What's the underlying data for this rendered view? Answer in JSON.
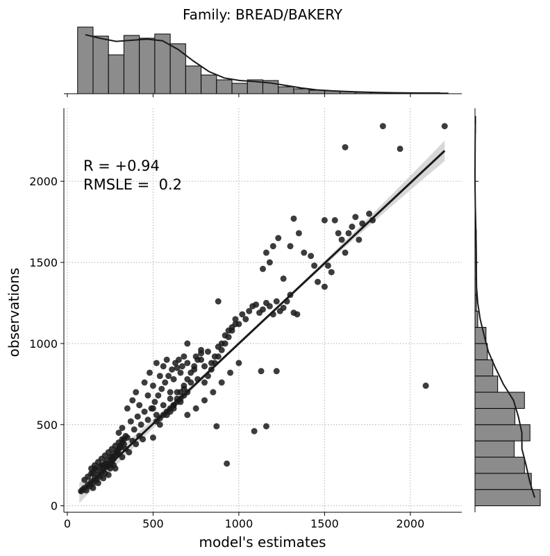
{
  "chart_data": {
    "type": "scatter",
    "title": "Family: BREAD/BAKERY",
    "xlabel": "model's estimates",
    "ylabel": "observations",
    "xlim": [
      -20,
      2300
    ],
    "ylim": [
      -40,
      2450
    ],
    "x_ticks": [
      0,
      500,
      1000,
      1500,
      2000
    ],
    "y_ticks": [
      0,
      500,
      1000,
      1500,
      2000
    ],
    "x_tick_labels": [
      "0",
      "500",
      "1000",
      "1500",
      "2000"
    ],
    "y_tick_labels": [
      "0",
      "500",
      "1000",
      "1500",
      "2000"
    ],
    "grid": true,
    "annotation_lines": [
      "R = +0.94",
      "RMSLE =  0.2"
    ],
    "colors": {
      "points": "#1a1a1a",
      "hist": "#8c8c8c",
      "line": "#1a1a1a",
      "band": "#d0d0d0"
    },
    "regression": {
      "slope": 0.99,
      "intercept": 10,
      "x_range": [
        70,
        2200
      ]
    },
    "points": [
      [
        80,
        90
      ],
      [
        90,
        100
      ],
      [
        100,
        110
      ],
      [
        110,
        95
      ],
      [
        120,
        130
      ],
      [
        130,
        120
      ],
      [
        140,
        150
      ],
      [
        150,
        140
      ],
      [
        160,
        170
      ],
      [
        170,
        160
      ],
      [
        180,
        190
      ],
      [
        190,
        180
      ],
      [
        200,
        210
      ],
      [
        210,
        220
      ],
      [
        220,
        200
      ],
      [
        230,
        240
      ],
      [
        240,
        260
      ],
      [
        250,
        230
      ],
      [
        260,
        280
      ],
      [
        270,
        250
      ],
      [
        100,
        160
      ],
      [
        120,
        180
      ],
      [
        140,
        200
      ],
      [
        150,
        110
      ],
      [
        160,
        230
      ],
      [
        180,
        140
      ],
      [
        200,
        250
      ],
      [
        210,
        170
      ],
      [
        220,
        260
      ],
      [
        240,
        190
      ],
      [
        260,
        300
      ],
      [
        280,
        230
      ],
      [
        300,
        320
      ],
      [
        320,
        300
      ],
      [
        340,
        350
      ],
      [
        360,
        330
      ],
      [
        380,
        400
      ],
      [
        400,
        380
      ],
      [
        420,
        430
      ],
      [
        440,
        410
      ],
      [
        300,
        450
      ],
      [
        320,
        480
      ],
      [
        350,
        420
      ],
      [
        370,
        520
      ],
      [
        390,
        470
      ],
      [
        410,
        550
      ],
      [
        430,
        500
      ],
      [
        450,
        580
      ],
      [
        470,
        530
      ],
      [
        490,
        600
      ],
      [
        500,
        420
      ],
      [
        520,
        560
      ],
      [
        540,
        500
      ],
      [
        560,
        620
      ],
      [
        580,
        560
      ],
      [
        600,
        660
      ],
      [
        620,
        600
      ],
      [
        640,
        700
      ],
      [
        660,
        640
      ],
      [
        680,
        720
      ],
      [
        350,
        600
      ],
      [
        380,
        650
      ],
      [
        400,
        700
      ],
      [
        420,
        620
      ],
      [
        450,
        760
      ],
      [
        470,
        680
      ],
      [
        480,
        820
      ],
      [
        500,
        740
      ],
      [
        520,
        880
      ],
      [
        540,
        800
      ],
      [
        560,
        860
      ],
      [
        580,
        900
      ],
      [
        600,
        700
      ],
      [
        620,
        780
      ],
      [
        640,
        850
      ],
      [
        660,
        820
      ],
      [
        680,
        920
      ],
      [
        700,
        880
      ],
      [
        720,
        760
      ],
      [
        740,
        840
      ],
      [
        760,
        780
      ],
      [
        780,
        900
      ],
      [
        800,
        860
      ],
      [
        820,
        950
      ],
      [
        840,
        880
      ],
      [
        860,
        920
      ],
      [
        880,
        980
      ],
      [
        900,
        1000
      ],
      [
        920,
        1050
      ],
      [
        940,
        1080
      ],
      [
        960,
        1100
      ],
      [
        980,
        1150
      ],
      [
        1000,
        1120
      ],
      [
        1020,
        1180
      ],
      [
        1040,
        1150
      ],
      [
        1060,
        1200
      ],
      [
        1080,
        1230
      ],
      [
        1100,
        1240
      ],
      [
        1120,
        1190
      ],
      [
        1140,
        1210
      ],
      [
        1160,
        1250
      ],
      [
        1180,
        1230
      ],
      [
        1200,
        1180
      ],
      [
        1220,
        1260
      ],
      [
        1240,
        1200
      ],
      [
        1260,
        1220
      ],
      [
        1280,
        1260
      ],
      [
        1300,
        1300
      ],
      [
        1320,
        1190
      ],
      [
        1340,
        1180
      ],
      [
        700,
        560
      ],
      [
        750,
        600
      ],
      [
        800,
        650
      ],
      [
        850,
        700
      ],
      [
        900,
        760
      ],
      [
        950,
        820
      ],
      [
        1000,
        880
      ],
      [
        700,
        1000
      ],
      [
        750,
        920
      ],
      [
        780,
        960
      ],
      [
        880,
        1260
      ],
      [
        930,
        260
      ],
      [
        870,
        490
      ],
      [
        1090,
        460
      ],
      [
        1160,
        490
      ],
      [
        1130,
        830
      ],
      [
        1220,
        830
      ],
      [
        1230,
        1650
      ],
      [
        1200,
        1600
      ],
      [
        1160,
        1560
      ],
      [
        1140,
        1460
      ],
      [
        1180,
        1500
      ],
      [
        1260,
        1400
      ],
      [
        1300,
        1600
      ],
      [
        1320,
        1770
      ],
      [
        1350,
        1680
      ],
      [
        1380,
        1560
      ],
      [
        1420,
        1540
      ],
      [
        1440,
        1480
      ],
      [
        1460,
        1380
      ],
      [
        1500,
        1760
      ],
      [
        1520,
        1480
      ],
      [
        1540,
        1440
      ],
      [
        1560,
        1760
      ],
      [
        1580,
        1680
      ],
      [
        1600,
        1640
      ],
      [
        1620,
        1560
      ],
      [
        1640,
        1680
      ],
      [
        1660,
        1720
      ],
      [
        1680,
        1780
      ],
      [
        1700,
        1640
      ],
      [
        1720,
        1740
      ],
      [
        1760,
        1800
      ],
      [
        1780,
        1760
      ],
      [
        1840,
        2340
      ],
      [
        1940,
        2200
      ],
      [
        2200,
        2340
      ],
      [
        1620,
        2210
      ],
      [
        2090,
        740
      ],
      [
        1500,
        1350
      ],
      [
        150,
        200
      ],
      [
        170,
        220
      ],
      [
        190,
        240
      ],
      [
        210,
        250
      ],
      [
        230,
        280
      ],
      [
        250,
        300
      ],
      [
        270,
        320
      ],
      [
        290,
        340
      ],
      [
        310,
        360
      ],
      [
        330,
        380
      ],
      [
        140,
        230
      ],
      [
        160,
        250
      ],
      [
        180,
        270
      ],
      [
        200,
        290
      ],
      [
        220,
        310
      ],
      [
        240,
        330
      ],
      [
        260,
        350
      ],
      [
        280,
        370
      ],
      [
        300,
        390
      ],
      [
        320,
        410
      ],
      [
        500,
        600
      ],
      [
        510,
        640
      ],
      [
        530,
        680
      ],
      [
        550,
        720
      ],
      [
        570,
        760
      ],
      [
        590,
        800
      ],
      [
        610,
        840
      ],
      [
        630,
        880
      ],
      [
        650,
        900
      ],
      [
        670,
        860
      ],
      [
        600,
        580
      ],
      [
        620,
        620
      ],
      [
        640,
        660
      ],
      [
        660,
        700
      ],
      [
        680,
        740
      ],
      [
        700,
        780
      ],
      [
        720,
        820
      ],
      [
        740,
        860
      ],
      [
        760,
        900
      ],
      [
        780,
        940
      ],
      [
        520,
        520
      ],
      [
        540,
        540
      ],
      [
        560,
        560
      ],
      [
        580,
        580
      ],
      [
        600,
        600
      ],
      [
        620,
        620
      ],
      [
        640,
        640
      ],
      [
        660,
        660
      ],
      [
        680,
        680
      ],
      [
        700,
        700
      ],
      [
        800,
        760
      ],
      [
        820,
        800
      ],
      [
        840,
        840
      ],
      [
        860,
        880
      ],
      [
        880,
        920
      ],
      [
        900,
        960
      ],
      [
        920,
        1000
      ],
      [
        940,
        1040
      ],
      [
        960,
        1080
      ],
      [
        980,
        1120
      ],
      [
        250,
        250
      ],
      [
        260,
        270
      ],
      [
        270,
        290
      ],
      [
        280,
        310
      ],
      [
        290,
        330
      ],
      [
        300,
        350
      ],
      [
        310,
        370
      ],
      [
        320,
        390
      ],
      [
        330,
        410
      ],
      [
        340,
        430
      ]
    ],
    "x_hist_bins": [
      60,
      150,
      240,
      330,
      420,
      510,
      600,
      690,
      780,
      870,
      960,
      1050,
      1140,
      1230,
      1320,
      1410,
      1500,
      1590,
      1680,
      1770,
      1860,
      1950,
      2040,
      2130,
      2220
    ],
    "x_hist_counts": [
      96,
      83,
      56,
      84,
      80,
      86,
      72,
      40,
      27,
      20,
      15,
      20,
      19,
      10,
      7,
      5,
      4,
      3,
      2,
      2,
      1,
      1,
      1,
      1
    ],
    "y_hist_bins": [
      0,
      100,
      200,
      300,
      400,
      500,
      600,
      700,
      800,
      900,
      1000,
      1100,
      1200,
      1300,
      1400,
      1500,
      1600,
      1700,
      1800,
      1900,
      2000,
      2100,
      2200,
      2300,
      2400
    ],
    "y_hist_counts": [
      95,
      82,
      72,
      57,
      80,
      58,
      72,
      33,
      26,
      18,
      16,
      4,
      2,
      2,
      2,
      2,
      2,
      1,
      0,
      0,
      0,
      0,
      0,
      1
    ]
  }
}
